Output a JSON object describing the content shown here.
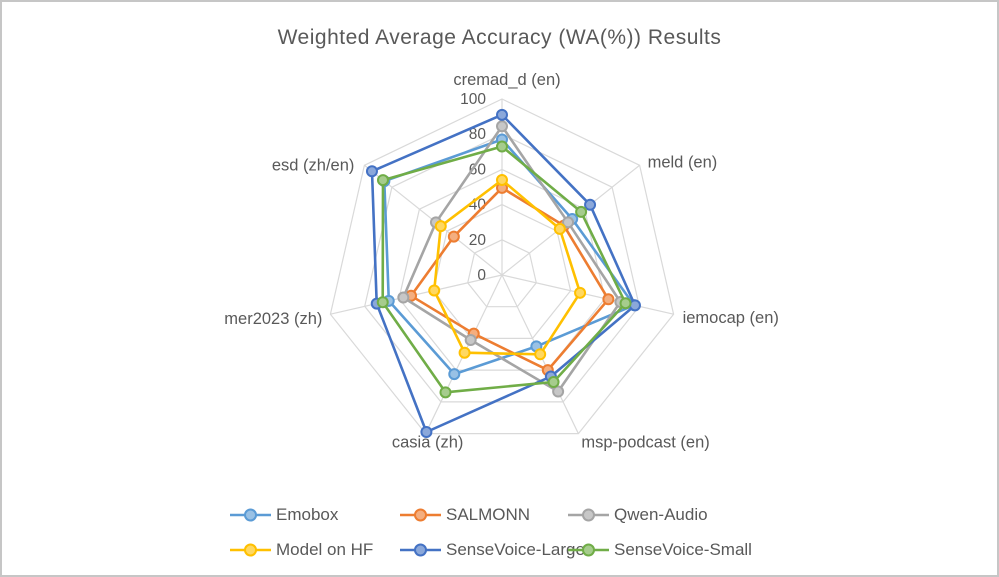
{
  "window": {
    "background": "#ffffff",
    "border_color": "#c6c6c6",
    "text_color": "#595959",
    "grid_color": "#d9d9d9"
  },
  "chart_data": {
    "type": "radar",
    "title": "Weighted Average Accuracy (WA(%)) Results",
    "categories": [
      "cremad_d (en)",
      "meld (en)",
      "iemocap (en)",
      "msp-podcast (en)",
      "casia (zh)",
      "mer2023 (zh)",
      "esd  (zh/en)"
    ],
    "series": [
      {
        "name": "Emobox",
        "color": "#5B9BD5",
        "values": [
          77,
          51,
          77,
          45,
          62.5,
          66,
          85.5
        ]
      },
      {
        "name": "SALMONN",
        "color": "#ED7D31",
        "values": [
          49.5,
          45,
          62,
          60,
          37,
          53,
          35
        ]
      },
      {
        "name": "Qwen-Audio",
        "color": "#A5A5A5",
        "values": [
          84.5,
          48,
          69,
          73.5,
          41,
          57.5,
          48
        ]
      },
      {
        "name": "Model on HF",
        "color": "#FFC000",
        "values": [
          54,
          42,
          45.5,
          50,
          49,
          39.5,
          44.5
        ]
      },
      {
        "name": "SenseVoice-Large",
        "color": "#4472C4",
        "values": [
          91,
          64,
          77.5,
          64,
          99,
          73,
          94.5
        ]
      },
      {
        "name": "SenseVoice-Small",
        "color": "#70AD47",
        "values": [
          73,
          57.5,
          72,
          67.5,
          74,
          69.5,
          86.5
        ]
      }
    ],
    "radial_axis": {
      "min": 0,
      "max": 100,
      "ticks": [
        0,
        20,
        40,
        60,
        80,
        100
      ]
    },
    "grid": true,
    "legend_position": "bottom"
  }
}
